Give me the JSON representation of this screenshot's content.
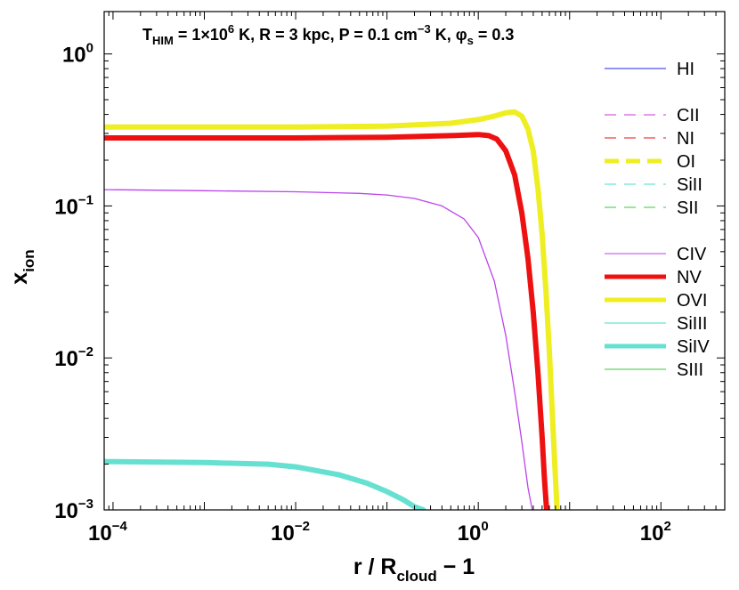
{
  "chart_data": {
    "type": "line",
    "title": {
      "T_main": "T",
      "T_sub": "HIM",
      "T_eq": " = 1×10",
      "T_exp": "6",
      "T_unit": " K,  R = 3 kpc,  P = 0.1 cm",
      "P_exp": "−3",
      "P_unit": " K,  ",
      "phi": "φ",
      "phi_sub": "s",
      "phi_eq": " = 0.3"
    },
    "xlabel": {
      "main": "r / R",
      "sub": "cloud",
      "tail": " − 1"
    },
    "ylabel": {
      "main": "x",
      "sub": "ion"
    },
    "x_scale": "log",
    "y_scale": "log",
    "xlim": [
      8e-05,
      500
    ],
    "ylim": [
      0.001,
      1.9
    ],
    "x_ticks": [
      {
        "value": 0.0001,
        "base": "10",
        "exp": "−4"
      },
      {
        "value": 0.01,
        "base": "10",
        "exp": "−2"
      },
      {
        "value": 1,
        "base": "10",
        "exp": "0"
      },
      {
        "value": 100,
        "base": "10",
        "exp": "2"
      }
    ],
    "y_ticks": [
      {
        "value": 0.001,
        "base": "10",
        "exp": "−3"
      },
      {
        "value": 0.01,
        "base": "10",
        "exp": "−2"
      },
      {
        "value": 0.1,
        "base": "10",
        "exp": "−1"
      },
      {
        "value": 1,
        "base": "10",
        "exp": "0"
      }
    ],
    "legend_position": "right",
    "legend": [
      {
        "label": "HI",
        "color": "#2222ee",
        "width": 1,
        "dash": "solid"
      },
      {
        "label": "CII",
        "color": "#cc33cc",
        "width": 1,
        "dash": "dashed"
      },
      {
        "label": "NI",
        "color": "#ee1111",
        "width": 1,
        "dash": "dashed"
      },
      {
        "label": "OI",
        "color": "#eeee22",
        "width": 5,
        "dash": "dashed"
      },
      {
        "label": "SiII",
        "color": "#44ddcc",
        "width": 1,
        "dash": "dashed"
      },
      {
        "label": "SII",
        "color": "#33cc33",
        "width": 1,
        "dash": "dashed"
      },
      {
        "label": "CIV",
        "color": "#bb44ee",
        "width": 1,
        "dash": "solid"
      },
      {
        "label": "NV",
        "color": "#ee1111",
        "width": 5,
        "dash": "solid"
      },
      {
        "label": "OVI",
        "color": "#eeee22",
        "width": 5,
        "dash": "solid"
      },
      {
        "label": "SiIII",
        "color": "#44ddcc",
        "width": 1,
        "dash": "solid"
      },
      {
        "label": "SiIV",
        "color": "#66e0d0",
        "width": 5,
        "dash": "solid"
      },
      {
        "label": "SIII",
        "color": "#33cc33",
        "width": 1,
        "dash": "solid"
      }
    ],
    "series": [
      {
        "name": "OVI",
        "color": "#eeee22",
        "width": 6,
        "x": [
          8e-05,
          0.001,
          0.01,
          0.1,
          0.5,
          1,
          1.5,
          2,
          2.5,
          3,
          3.5,
          4,
          4.5,
          5,
          5.5,
          6,
          6.5,
          7,
          7.3
        ],
        "y": [
          0.33,
          0.33,
          0.33,
          0.335,
          0.35,
          0.37,
          0.39,
          0.41,
          0.415,
          0.39,
          0.32,
          0.23,
          0.13,
          0.065,
          0.028,
          0.011,
          0.004,
          0.0016,
          0.001
        ]
      },
      {
        "name": "NV",
        "color": "#ee1111",
        "width": 6,
        "x": [
          8e-05,
          0.001,
          0.01,
          0.1,
          0.5,
          1,
          1.3,
          1.6,
          2,
          2.5,
          3,
          3.5,
          4,
          4.5,
          5,
          5.3,
          5.6
        ],
        "y": [
          0.28,
          0.28,
          0.28,
          0.283,
          0.29,
          0.295,
          0.29,
          0.275,
          0.23,
          0.16,
          0.09,
          0.045,
          0.02,
          0.008,
          0.003,
          0.0016,
          0.001
        ]
      },
      {
        "name": "CIV",
        "color": "#bb44ee",
        "width": 1.3,
        "x": [
          8e-05,
          0.001,
          0.01,
          0.05,
          0.1,
          0.2,
          0.4,
          0.7,
          1,
          1.5,
          2,
          2.5,
          3,
          3.5,
          3.9
        ],
        "y": [
          0.128,
          0.126,
          0.124,
          0.121,
          0.118,
          0.112,
          0.1,
          0.082,
          0.062,
          0.032,
          0.014,
          0.006,
          0.0028,
          0.0014,
          0.001
        ]
      },
      {
        "name": "SiIV",
        "color": "#66e0d0",
        "width": 6,
        "x": [
          8e-05,
          0.001,
          0.005,
          0.01,
          0.03,
          0.06,
          0.1,
          0.15,
          0.2,
          0.25
        ],
        "y": [
          0.00208,
          0.00205,
          0.002,
          0.00192,
          0.0017,
          0.0015,
          0.00132,
          0.00117,
          0.00105,
          0.001
        ]
      }
    ]
  }
}
